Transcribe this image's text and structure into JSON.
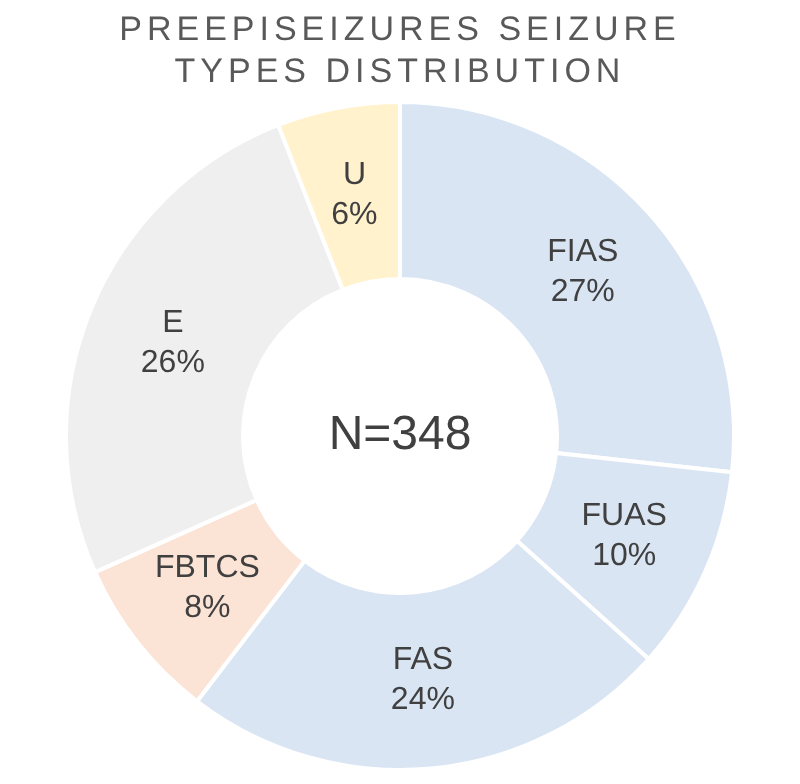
{
  "chart_data": {
    "type": "donut",
    "title": "PREEPISEIZURES SEIZURE TYPES DISTRIBUTION",
    "categories": [
      "FIAS",
      "FUAS",
      "FAS",
      "FBTCS",
      "E",
      "U"
    ],
    "values": [
      27,
      10,
      24,
      8,
      26,
      6
    ],
    "value_labels": [
      "27%",
      "10%",
      "24%",
      "8%",
      "26%",
      "6%"
    ],
    "colors": [
      "#dae5f3",
      "#dae5f3",
      "#dae5f3",
      "#fbe3d6",
      "#efefef",
      "#fff2cc"
    ],
    "annotations": [
      "N=348"
    ],
    "legend": false
  }
}
